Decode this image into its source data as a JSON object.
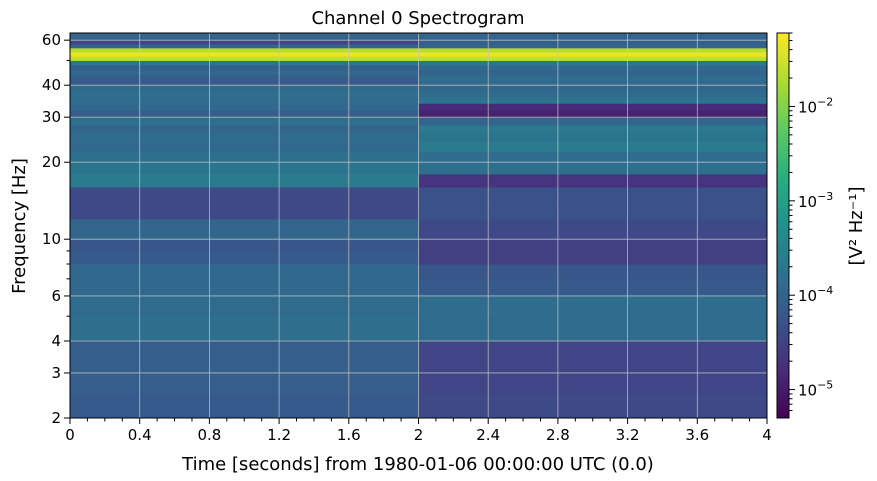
{
  "chart_data": {
    "type": "heatmap",
    "title": "Channel 0 Spectrogram",
    "xlabel": "Time [seconds] from 1980-01-06 00:00:00 UTC (0.0)",
    "ylabel": "Frequency [Hz]",
    "colorbar_label": "[V² Hz⁻¹]",
    "colormap": "viridis",
    "y_scale": "log",
    "xlim": [
      0,
      4
    ],
    "ylim": [
      2,
      64
    ],
    "x_ticks": [
      "0",
      "0.4",
      "0.8",
      "1.2",
      "1.6",
      "2",
      "2.4",
      "2.8",
      "3.2",
      "3.6",
      "4"
    ],
    "y_ticks": [
      "2",
      "3",
      "4",
      "6",
      "10",
      "20",
      "30",
      "40",
      "60"
    ],
    "colorbar_ticks": [
      {
        "base": "10",
        "exp": "−5"
      },
      {
        "base": "10",
        "exp": "−4"
      },
      {
        "base": "10",
        "exp": "−3"
      },
      {
        "base": "10",
        "exp": "−2"
      }
    ],
    "clim": [
      5e-06,
      0.06
    ],
    "grid": true,
    "time_segments": [
      {
        "t_start": 0,
        "t_end": 2,
        "rows": [
          {
            "f_low": 2,
            "f_high": 2.5,
            "value": 7e-05
          },
          {
            "f_low": 2.5,
            "f_high": 4,
            "value": 8e-05
          },
          {
            "f_low": 4,
            "f_high": 5,
            "value": 0.00015
          },
          {
            "f_low": 5,
            "f_high": 6,
            "value": 0.00013
          },
          {
            "f_low": 6,
            "f_high": 7,
            "value": 0.00012
          },
          {
            "f_low": 7,
            "f_high": 8,
            "value": 0.00012
          },
          {
            "f_low": 8,
            "f_high": 9,
            "value": 7e-05
          },
          {
            "f_low": 9,
            "f_high": 10,
            "value": 6e-05
          },
          {
            "f_low": 10,
            "f_high": 12,
            "value": 0.00011
          },
          {
            "f_low": 12,
            "f_high": 14,
            "value": 4e-05
          },
          {
            "f_low": 14,
            "f_high": 16,
            "value": 4e-05
          },
          {
            "f_low": 16,
            "f_high": 18,
            "value": 0.00024
          },
          {
            "f_low": 18,
            "f_high": 20,
            "value": 0.00018
          },
          {
            "f_low": 20,
            "f_high": 22,
            "value": 0.00016
          },
          {
            "f_low": 22,
            "f_high": 24,
            "value": 0.00012
          },
          {
            "f_low": 24,
            "f_high": 26,
            "value": 0.00013
          },
          {
            "f_low": 26,
            "f_high": 28,
            "value": 0.00011
          },
          {
            "f_low": 28,
            "f_high": 30,
            "value": 0.00016
          },
          {
            "f_low": 30,
            "f_high": 32,
            "value": 8e-05
          },
          {
            "f_low": 32,
            "f_high": 34,
            "value": 0.00012
          },
          {
            "f_low": 34,
            "f_high": 36,
            "value": 0.00013
          },
          {
            "f_low": 36,
            "f_high": 38,
            "value": 0.00015
          },
          {
            "f_low": 38,
            "f_high": 40,
            "value": 0.00013
          },
          {
            "f_low": 40,
            "f_high": 42,
            "value": 7e-05
          },
          {
            "f_low": 42,
            "f_high": 44,
            "value": 8e-05
          },
          {
            "f_low": 44,
            "f_high": 46,
            "value": 0.00012
          },
          {
            "f_low": 46,
            "f_high": 48,
            "value": 8e-05
          },
          {
            "f_low": 48,
            "f_high": 50,
            "value": 0.0002
          },
          {
            "f_low": 50,
            "f_high": 52,
            "value": 0.025
          },
          {
            "f_low": 52,
            "f_high": 54,
            "value": 0.045
          },
          {
            "f_low": 54,
            "f_high": 56,
            "value": 0.022
          },
          {
            "f_low": 56,
            "f_high": 58,
            "value": 0.0001
          },
          {
            "f_low": 58,
            "f_high": 60,
            "value": 3.5e-05
          },
          {
            "f_low": 60,
            "f_high": 62,
            "value": 9e-05
          },
          {
            "f_low": 62,
            "f_high": 64,
            "value": 0.00011
          }
        ]
      },
      {
        "t_start": 2,
        "t_end": 4,
        "rows": [
          {
            "f_low": 2,
            "f_high": 2.5,
            "value": 4e-05
          },
          {
            "f_low": 2.5,
            "f_high": 4,
            "value": 3.5e-05
          },
          {
            "f_low": 4,
            "f_high": 5,
            "value": 0.00013
          },
          {
            "f_low": 5,
            "f_high": 6,
            "value": 0.00014
          },
          {
            "f_low": 6,
            "f_high": 7,
            "value": 7e-05
          },
          {
            "f_low": 7,
            "f_high": 8,
            "value": 6e-05
          },
          {
            "f_low": 8,
            "f_high": 9,
            "value": 3e-05
          },
          {
            "f_low": 9,
            "f_high": 10,
            "value": 3e-05
          },
          {
            "f_low": 10,
            "f_high": 12,
            "value": 4e-05
          },
          {
            "f_low": 12,
            "f_high": 14,
            "value": 5e-05
          },
          {
            "f_low": 14,
            "f_high": 16,
            "value": 5e-05
          },
          {
            "f_low": 16,
            "f_high": 18,
            "value": 2e-05
          },
          {
            "f_low": 18,
            "f_high": 20,
            "value": 0.00015
          },
          {
            "f_low": 20,
            "f_high": 22,
            "value": 0.00014
          },
          {
            "f_low": 22,
            "f_high": 24,
            "value": 0.00024
          },
          {
            "f_low": 24,
            "f_high": 26,
            "value": 0.00018
          },
          {
            "f_low": 26,
            "f_high": 28,
            "value": 0.00022
          },
          {
            "f_low": 28,
            "f_high": 30,
            "value": 0.0001
          },
          {
            "f_low": 30,
            "f_high": 32,
            "value": 1.2e-05
          },
          {
            "f_low": 32,
            "f_high": 34,
            "value": 1.5e-05
          },
          {
            "f_low": 34,
            "f_high": 36,
            "value": 0.00018
          },
          {
            "f_low": 36,
            "f_high": 38,
            "value": 0.00013
          },
          {
            "f_low": 38,
            "f_high": 40,
            "value": 0.00011
          },
          {
            "f_low": 40,
            "f_high": 42,
            "value": 0.00013
          },
          {
            "f_low": 42,
            "f_high": 44,
            "value": 0.00014
          },
          {
            "f_low": 44,
            "f_high": 46,
            "value": 0.0001
          },
          {
            "f_low": 46,
            "f_high": 48,
            "value": 0.00012
          },
          {
            "f_low": 48,
            "f_high": 50,
            "value": 0.0002
          },
          {
            "f_low": 50,
            "f_high": 52,
            "value": 0.025
          },
          {
            "f_low": 52,
            "f_high": 54,
            "value": 0.045
          },
          {
            "f_low": 54,
            "f_high": 56,
            "value": 0.022
          },
          {
            "f_low": 56,
            "f_high": 58,
            "value": 0.0001
          },
          {
            "f_low": 58,
            "f_high": 60,
            "value": 8e-05
          },
          {
            "f_low": 60,
            "f_high": 62,
            "value": 0.00011
          },
          {
            "f_low": 62,
            "f_high": 64,
            "value": 0.00011
          }
        ]
      }
    ]
  }
}
